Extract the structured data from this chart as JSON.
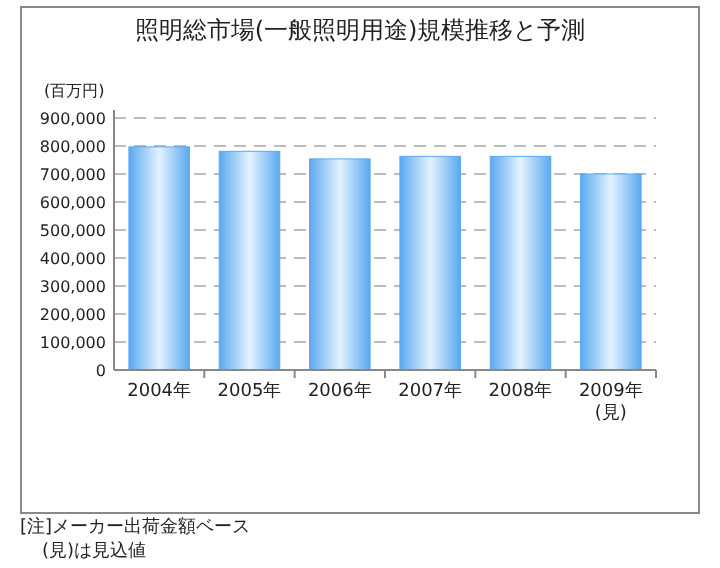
{
  "chart_data": {
    "type": "bar",
    "title": "照明総市場(一般照明用途)規模推移と予測",
    "ylabel": "(百万円)",
    "categories": [
      "2004年",
      "2005年",
      "2006年",
      "2007年",
      "2008年",
      "2009年(見)"
    ],
    "values": [
      797000,
      781000,
      754000,
      763000,
      763000,
      700000
    ],
    "color": "#5aa8f0",
    "ylim": [
      0,
      900000
    ],
    "yticks": [
      {
        "value": 0,
        "label": "0"
      },
      {
        "value": 100000,
        "label": "100,000"
      },
      {
        "value": 200000,
        "label": "200,000"
      },
      {
        "value": 300000,
        "label": "300,000"
      },
      {
        "value": 400000,
        "label": "400,000"
      },
      {
        "value": 500000,
        "label": "500,000"
      },
      {
        "value": 600000,
        "label": "600,000"
      },
      {
        "value": 700000,
        "label": "700,000"
      },
      {
        "value": 800000,
        "label": "800,000"
      },
      {
        "value": 900000,
        "label": "900,000"
      }
    ],
    "grid": "y",
    "annotations": [
      "[注]メーカー出荷金額ベース",
      "(見)は見込値"
    ]
  }
}
